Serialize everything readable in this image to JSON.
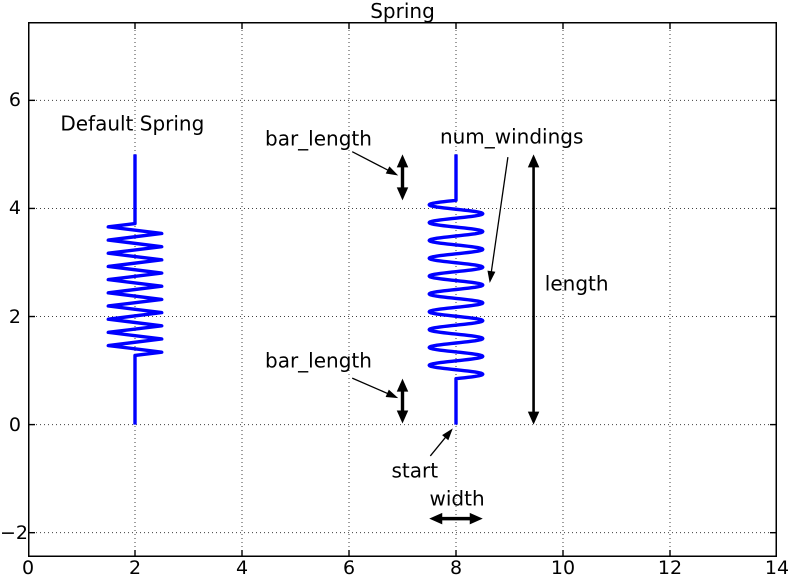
{
  "title": "Spring",
  "colors": {
    "spring": "#0000ff",
    "axis": "#000000",
    "grid": "#000000",
    "background": "#ffffff"
  },
  "chart_data": {
    "type": "line",
    "title": "Spring",
    "xlim": [
      0,
      14
    ],
    "ylim": [
      -2.45,
      7.45
    ],
    "grid": {
      "style": "dotted",
      "on": true
    },
    "x_axis": {
      "ticks": [
        {
          "v": 0,
          "label": "0"
        },
        {
          "v": 2,
          "label": "2"
        },
        {
          "v": 4,
          "label": "4"
        },
        {
          "v": 6,
          "label": "6"
        },
        {
          "v": 8,
          "label": "8"
        },
        {
          "v": 10,
          "label": "10"
        },
        {
          "v": 12,
          "label": "12"
        },
        {
          "v": 14,
          "label": "14"
        }
      ]
    },
    "y_axis": {
      "ticks": [
        {
          "v": -2,
          "label": "−2"
        },
        {
          "v": 0,
          "label": "0"
        },
        {
          "v": 2,
          "label": "2"
        },
        {
          "v": 4,
          "label": "4"
        },
        {
          "v": 6,
          "label": "6"
        }
      ]
    },
    "springs": [
      {
        "name": "default-spring",
        "style": "zigzag",
        "start": [
          2,
          0
        ],
        "length": 5.0,
        "width": 1.0,
        "bar_length": 1.28,
        "num_windings": 10,
        "color": "#0000ff"
      },
      {
        "name": "annotated-spring",
        "style": "sine",
        "start": [
          8,
          0
        ],
        "length": 5.0,
        "width": 1.0,
        "bar_length": 0.85,
        "num_windings": 10,
        "color": "#0000ff"
      }
    ],
    "labels": [
      {
        "name": "default-spring-label",
        "text": "Default Spring",
        "x": 1.95,
        "y": 5.56,
        "ha": "center"
      },
      {
        "name": "bar-length-top-label",
        "text": "bar_length",
        "x": 4.43,
        "y": 5.28,
        "ha": "left"
      },
      {
        "name": "num-windings-label",
        "text": "num_windings",
        "x": 7.7,
        "y": 5.32,
        "ha": "left"
      },
      {
        "name": "length-label",
        "text": "length",
        "x": 9.66,
        "y": 2.61,
        "ha": "left"
      },
      {
        "name": "bar-length-bottom-label",
        "text": "bar_length",
        "x": 4.43,
        "y": 1.17,
        "ha": "left"
      },
      {
        "name": "start-label",
        "text": "start",
        "x": 7.23,
        "y": -0.86,
        "ha": "center"
      },
      {
        "name": "width-label",
        "text": "width",
        "x": 8.02,
        "y": -1.38,
        "ha": "center"
      }
    ],
    "pointer_arrows": [
      {
        "name": "bar-length-top-pointer",
        "from": [
          6.06,
          5.05
        ],
        "to": [
          6.92,
          4.61
        ]
      },
      {
        "name": "num-windings-pointer",
        "from": [
          8.97,
          4.95
        ],
        "to": [
          8.63,
          2.62
        ]
      },
      {
        "name": "bar-length-bottom-pointer",
        "from": [
          6.06,
          0.86
        ],
        "to": [
          6.92,
          0.49
        ]
      },
      {
        "name": "start-pointer",
        "from": [
          7.52,
          -0.58
        ],
        "to": [
          7.94,
          -0.07
        ]
      }
    ],
    "measure_arrows": [
      {
        "name": "bar-length-top-arrow",
        "from": [
          7.0,
          4.15
        ],
        "to": [
          7.0,
          5.0
        ],
        "lw": 3.4
      },
      {
        "name": "bar-length-bottom-arrow",
        "from": [
          7.0,
          0.02
        ],
        "to": [
          7.0,
          0.85
        ],
        "lw": 3.4
      },
      {
        "name": "length-arrow",
        "from": [
          9.45,
          0.0
        ],
        "to": [
          9.45,
          5.0
        ],
        "lw": 2.6
      },
      {
        "name": "width-arrow",
        "from": [
          7.5,
          -1.74
        ],
        "to": [
          8.5,
          -1.74
        ],
        "lw": 3.4
      }
    ]
  }
}
